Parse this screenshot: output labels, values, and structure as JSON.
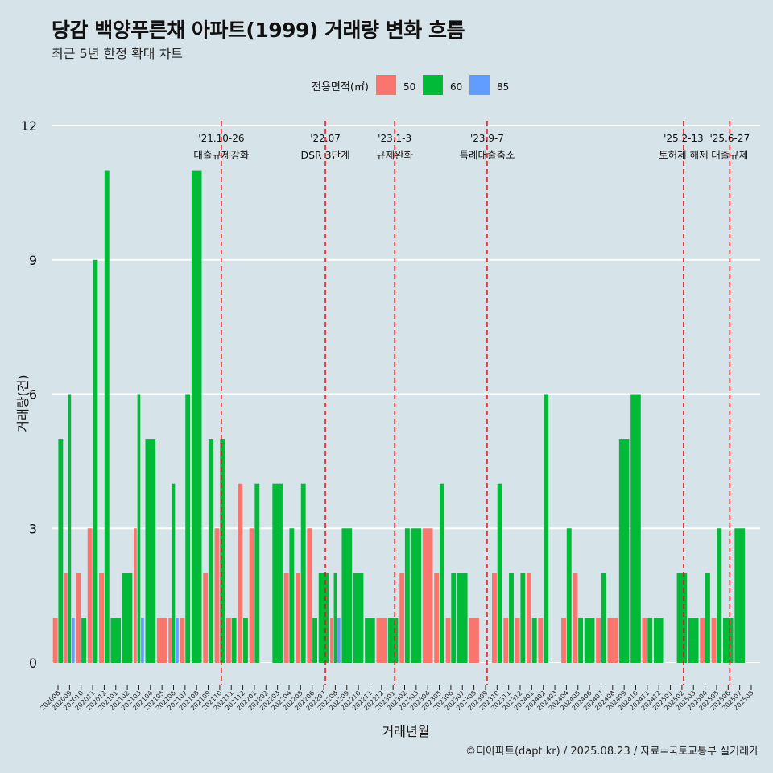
{
  "chart_data": {
    "type": "bar",
    "title": "당감 백양푸른채 아파트(1999) 거래량 변화 흐름",
    "subtitle": "최근 5년 한정 확대 차트",
    "xlabel": "거래년월",
    "ylabel": "거래량(건)",
    "caption": "©디아파트(dapt.kr) / 2025.08.23 / 자료=국토교통부 실거래가",
    "legend_title": "전용면적(㎡)",
    "legend_position": "top",
    "ylim": [
      -0.5,
      12
    ],
    "yticks": [
      0,
      3,
      6,
      9,
      12
    ],
    "grid": true,
    "months": [
      "202008",
      "202009",
      "202010",
      "202011",
      "202012",
      "202101",
      "202102",
      "202103",
      "202104",
      "202105",
      "202106",
      "202107",
      "202108",
      "202109",
      "202110",
      "202111",
      "202112",
      "202201",
      "202202",
      "202203",
      "202204",
      "202205",
      "202206",
      "202207",
      "202208",
      "202209",
      "202210",
      "202211",
      "202212",
      "202301",
      "202302",
      "202303",
      "202304",
      "202305",
      "202306",
      "202307",
      "202308",
      "202309",
      "202310",
      "202311",
      "202312",
      "202401",
      "202402",
      "202403",
      "202404",
      "202405",
      "202406",
      "202407",
      "202408",
      "202409",
      "202410",
      "202411",
      "202412",
      "202501",
      "202502",
      "202503",
      "202504",
      "202505",
      "202506",
      "202507",
      "202508"
    ],
    "series": [
      {
        "name": "50",
        "color": "#f8766d",
        "values": [
          1,
          2,
          2,
          3,
          2,
          0,
          0,
          3,
          0,
          1,
          1,
          1,
          0,
          2,
          3,
          1,
          4,
          3,
          0,
          0,
          2,
          2,
          3,
          0,
          1,
          0,
          0,
          0,
          1,
          0,
          2,
          0,
          3,
          2,
          1,
          0,
          1,
          0,
          2,
          1,
          1,
          2,
          1,
          0,
          1,
          2,
          0,
          1,
          1,
          0,
          0,
          1,
          0,
          0,
          0,
          0,
          1,
          1,
          0,
          0,
          0
        ]
      },
      {
        "name": "60",
        "color": "#00ba38",
        "values": [
          5,
          6,
          1,
          9,
          11,
          1,
          2,
          6,
          5,
          0,
          4,
          6,
          11,
          5,
          5,
          1,
          1,
          4,
          0,
          4,
          3,
          4,
          1,
          2,
          2,
          3,
          2,
          1,
          0,
          1,
          3,
          3,
          0,
          4,
          2,
          2,
          0,
          0,
          4,
          2,
          2,
          1,
          6,
          0,
          3,
          1,
          1,
          2,
          0,
          5,
          6,
          1,
          1,
          0,
          2,
          1,
          2,
          3,
          1,
          3,
          0
        ]
      },
      {
        "name": "85",
        "color": "#619cff",
        "values": [
          0,
          1,
          0,
          0,
          0,
          0,
          0,
          1,
          0,
          0,
          1,
          0,
          0,
          0,
          0,
          0,
          0,
          0,
          0,
          0,
          0,
          0,
          0,
          0,
          1,
          0,
          0,
          0,
          0,
          0,
          0,
          0,
          0,
          0,
          0,
          0,
          0,
          0,
          0,
          0,
          0,
          0,
          0,
          0,
          0,
          0,
          0,
          0,
          0,
          0,
          0,
          0,
          0,
          0,
          0,
          0,
          0,
          0,
          0,
          0,
          0
        ]
      }
    ],
    "events": [
      {
        "month": "202110",
        "date": "'21.10-26",
        "label": "대출규제강화"
      },
      {
        "month": "202207",
        "date": "'22.07",
        "label": "DSR 3단계"
      },
      {
        "month": "202301",
        "date": "'23.1-3",
        "label": "규제완화"
      },
      {
        "month": "202309",
        "date": "'23.9-7",
        "label": "특례대출축소"
      },
      {
        "month": "202502",
        "date": "'25.2-13",
        "label": "토허제 해제"
      },
      {
        "month": "202506",
        "date": "'25.6-27",
        "label": "대출규제"
      }
    ]
  }
}
